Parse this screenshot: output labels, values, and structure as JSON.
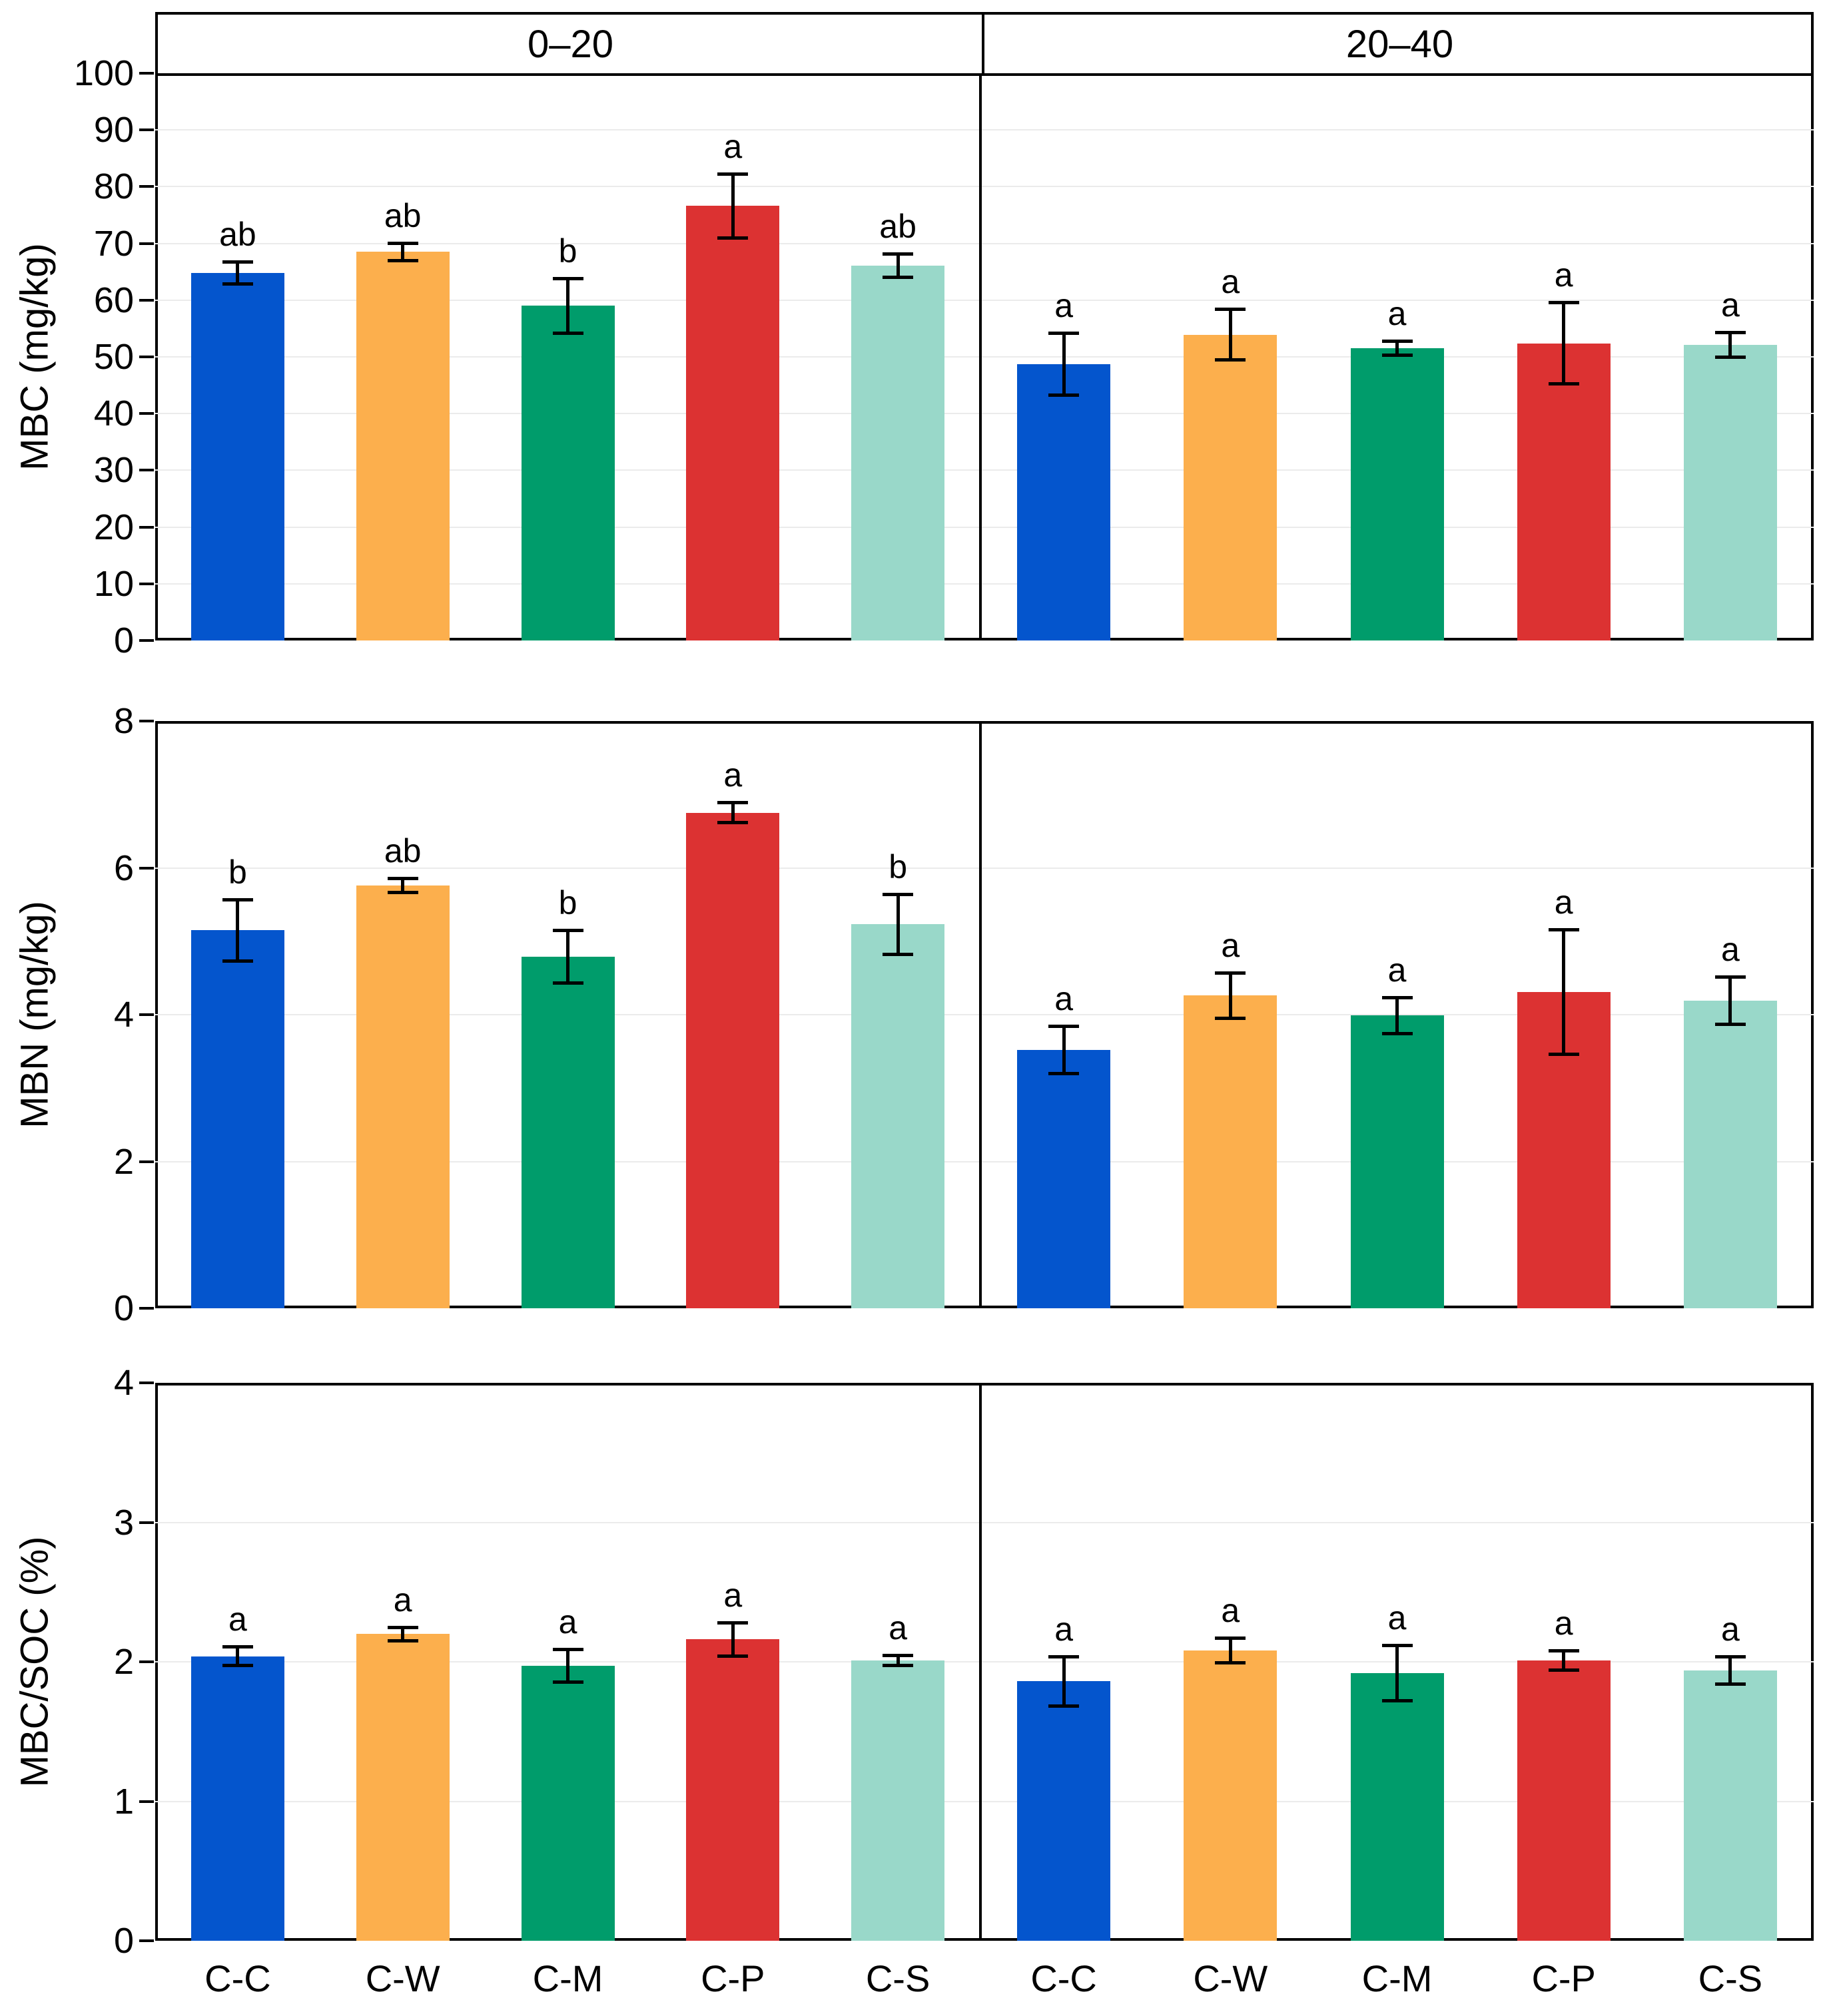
{
  "chart_data": {
    "type": "bar",
    "title": "",
    "facets": [
      "0–20",
      "20–40"
    ],
    "categories": [
      "C-C",
      "C-W",
      "C-M",
      "C-P",
      "C-S"
    ],
    "palette": [
      "#0455CD",
      "#FCAF4D",
      "#009C6B",
      "#DC3232",
      "#99D8C9"
    ],
    "error_bar_color": "#000000",
    "gridline_color": "#ebebeb",
    "border_color": "#000000",
    "legend": "none",
    "grid": "horizontal",
    "panels": [
      {
        "ylabel": "MBC (mg/kg)",
        "ymax": 100,
        "ylim": [
          0,
          100
        ],
        "yticks": [
          100,
          90,
          80,
          70,
          60,
          50,
          40,
          30,
          20,
          10,
          0
        ],
        "gridlines": [
          10,
          20,
          30,
          40,
          50,
          60,
          70,
          80,
          90
        ],
        "facets": [
          {
            "facet": "0–20",
            "values": [
              64.8,
              68.5,
              59.0,
              76.6,
              66.1
            ],
            "errors": [
              2.0,
              1.6,
              4.9,
              5.7,
              2.1
            ],
            "letters": [
              "ab",
              "ab",
              "b",
              "a",
              "ab"
            ]
          },
          {
            "facet": "20–40",
            "values": [
              48.7,
              53.9,
              51.5,
              52.4,
              52.1
            ],
            "errors": [
              5.5,
              4.5,
              1.3,
              7.2,
              2.2
            ],
            "letters": [
              "a",
              "a",
              "a",
              "a",
              "a"
            ]
          }
        ]
      },
      {
        "ylabel": "MBN (mg/kg)",
        "ymax": 8,
        "ylim": [
          0,
          8
        ],
        "yticks": [
          8,
          6,
          4,
          2,
          0
        ],
        "gridlines": [
          2,
          4,
          6
        ],
        "facets": [
          {
            "facet": "0–20",
            "values": [
              5.15,
              5.76,
              4.79,
              6.75,
              5.23
            ],
            "errors": [
              0.42,
              0.1,
              0.36,
              0.14,
              0.41
            ],
            "letters": [
              "b",
              "ab",
              "b",
              "a",
              "b"
            ]
          },
          {
            "facet": "20–40",
            "values": [
              3.52,
              4.26,
              3.99,
              4.31,
              4.19
            ],
            "errors": [
              0.33,
              0.31,
              0.25,
              0.85,
              0.33
            ],
            "letters": [
              "a",
              "a",
              "a",
              "a",
              "a"
            ]
          }
        ]
      },
      {
        "ylabel": "MBC/SOC (%)",
        "ymax": 4,
        "ylim": [
          0,
          4
        ],
        "yticks": [
          4,
          3,
          2,
          1,
          0
        ],
        "gridlines": [
          1,
          2,
          3
        ],
        "facets": [
          {
            "facet": "0–20",
            "values": [
              2.04,
              2.2,
              1.97,
              2.16,
              2.01
            ],
            "errors": [
              0.07,
              0.05,
              0.12,
              0.12,
              0.04
            ],
            "letters": [
              "a",
              "a",
              "a",
              "a",
              "a"
            ]
          },
          {
            "facet": "20–40",
            "values": [
              1.86,
              2.08,
              1.92,
              2.01,
              1.94
            ],
            "errors": [
              0.18,
              0.09,
              0.2,
              0.07,
              0.1
            ],
            "letters": [
              "a",
              "a",
              "a",
              "a",
              "a"
            ]
          }
        ]
      }
    ]
  }
}
